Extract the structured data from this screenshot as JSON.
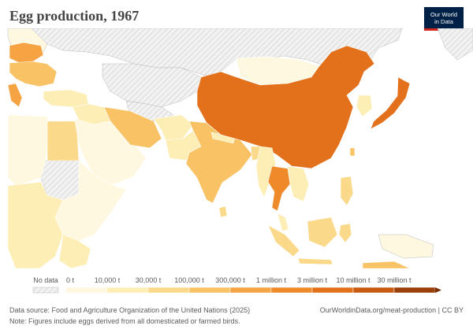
{
  "header": {
    "title": "Egg production, 1967",
    "logo_line1": "Our World",
    "logo_line2": "in Data"
  },
  "legend": {
    "no_data_label": "No data",
    "items": [
      {
        "label": "0 t",
        "color": "#fff8e0"
      },
      {
        "label": "10,000 t",
        "color": "#fdeeb5"
      },
      {
        "label": "30,000 t",
        "color": "#fbd98a"
      },
      {
        "label": "100,000 t",
        "color": "#f8c265"
      },
      {
        "label": "300,000 t",
        "color": "#f5a343"
      },
      {
        "label": "1 million t",
        "color": "#ef8a2b"
      },
      {
        "label": "3 million t",
        "color": "#e3701b"
      },
      {
        "label": "10 million t",
        "color": "#c85a12"
      },
      {
        "label": "30 million t",
        "color": "#9a3f0a"
      }
    ],
    "last_color": "#7a2e06"
  },
  "footer": {
    "source": "Data source: Food and Agriculture Organization of the United Nations (2025)",
    "note": "Note: Figures include eggs derived from all domesticated or farmed birds.",
    "url": "OurWorldinData.org/meat-production | CC BY"
  }
}
